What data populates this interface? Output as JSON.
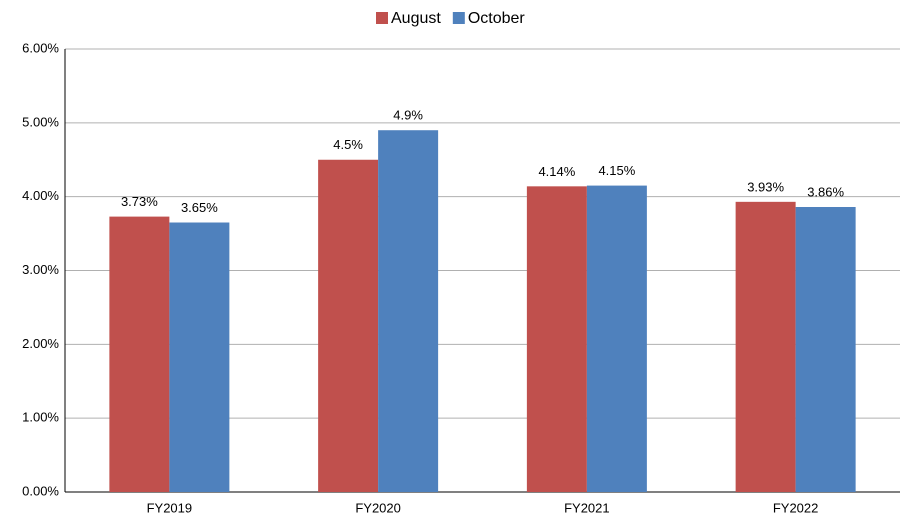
{
  "chart_data": {
    "type": "bar",
    "categories": [
      "FY2019",
      "FY2020",
      "FY2021",
      "FY2022"
    ],
    "series": [
      {
        "name": "August",
        "color": "#c0504d",
        "values": [
          3.73,
          4.5,
          4.14,
          3.93
        ],
        "value_labels": [
          "3.73%",
          "4.5%",
          "4.14%",
          "3.93%"
        ]
      },
      {
        "name": "October",
        "color": "#4f81bd",
        "values": [
          3.65,
          4.9,
          4.15,
          3.86
        ],
        "value_labels": [
          "3.65%",
          "4.9%",
          "4.15%",
          "3.86%"
        ]
      }
    ],
    "ylim": [
      0,
      6
    ],
    "yticks": [
      {
        "value": 0,
        "label": "0.00%"
      },
      {
        "value": 1,
        "label": "1.00%"
      },
      {
        "value": 2,
        "label": "2.00%"
      },
      {
        "value": 3,
        "label": "3.00%"
      },
      {
        "value": 4,
        "label": "4.00%"
      },
      {
        "value": 5,
        "label": "5.00%"
      },
      {
        "value": 6,
        "label": "6.00%"
      }
    ],
    "grid": true,
    "legend": "top"
  }
}
